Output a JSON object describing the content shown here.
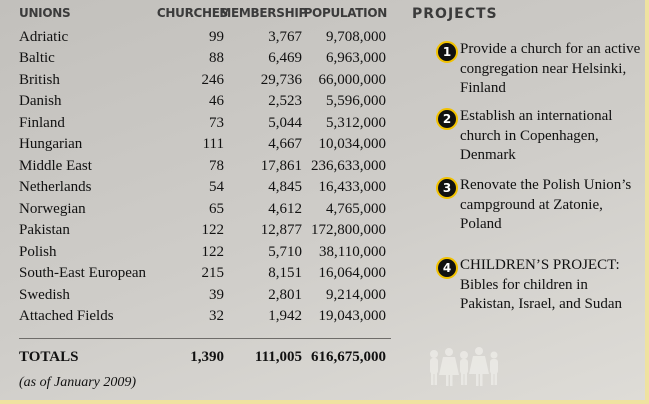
{
  "table": {
    "headers": [
      "UNIONS",
      "CHURCHES",
      "MEMBERSHIP",
      "POPULATION"
    ],
    "rows": [
      [
        "Adriatic",
        "99",
        "3,767",
        "9,708,000"
      ],
      [
        "Baltic",
        "88",
        "6,469",
        "6,963,000"
      ],
      [
        "British",
        "246",
        "29,736",
        "66,000,000"
      ],
      [
        "Danish",
        "46",
        "2,523",
        "5,596,000"
      ],
      [
        "Finland",
        "73",
        "5,044",
        "5,312,000"
      ],
      [
        "Hungarian",
        "111",
        "4,667",
        "10,034,000"
      ],
      [
        "Middle East",
        "78",
        "17,861",
        "236,633,000"
      ],
      [
        "Netherlands",
        "54",
        "4,845",
        "16,433,000"
      ],
      [
        "Norwegian",
        "65",
        "4,612",
        "4,765,000"
      ],
      [
        "Pakistan",
        "122",
        "12,877",
        "172,800,000"
      ],
      [
        "Polish",
        "122",
        "5,710",
        "38,110,000"
      ],
      [
        "South-East European",
        "215",
        "8,151",
        "16,064,000"
      ],
      [
        "Swedish",
        "39",
        "2,801",
        "9,214,000"
      ],
      [
        "Attached Fields",
        "32",
        "1,942",
        "19,043,000"
      ]
    ],
    "totals": [
      "TOTALS",
      "1,390",
      "111,005",
      "616,675,000"
    ],
    "note": "(as of January 2009)"
  },
  "projects": {
    "title": "PROJECTS",
    "items": [
      {
        "number": "1",
        "text": "Provide a church for an active congregation near Helsinki, Finland"
      },
      {
        "number": "2",
        "text": "Establish an international church in Copenhagen, Denmark"
      },
      {
        "number": "3",
        "text": "Renovate the Polish Union’s campground at Zatonie, Poland"
      },
      {
        "number": "4",
        "text": "CHILDREN’S PROJECT: Bibles for children in Pakistan, Israel, and Sudan"
      }
    ]
  }
}
